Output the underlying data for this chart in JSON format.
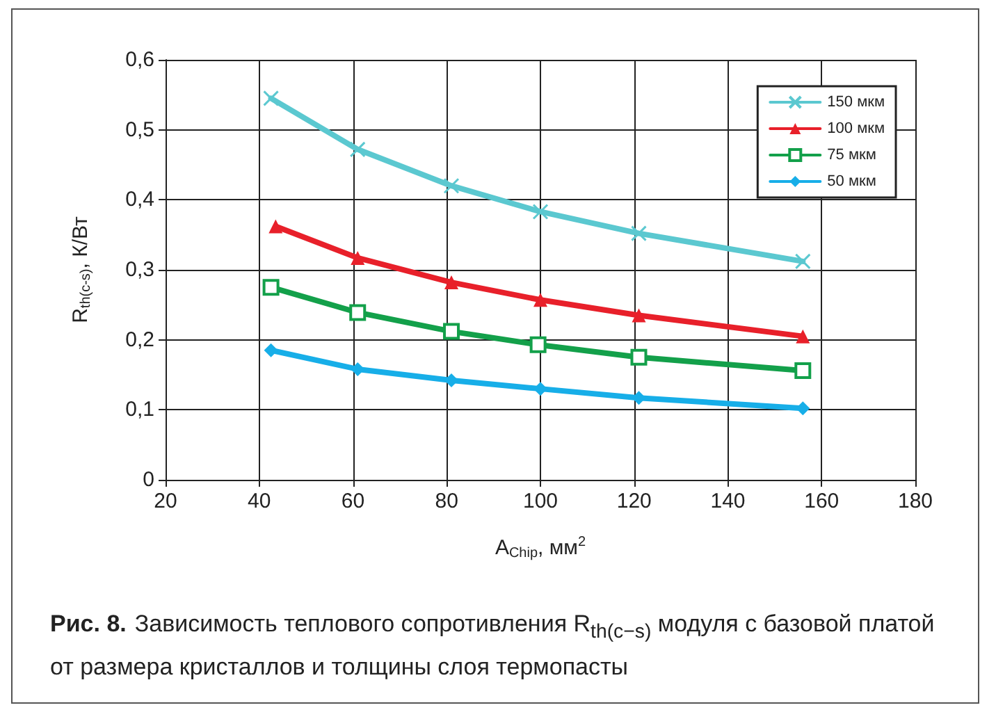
{
  "chart_data": {
    "type": "line",
    "xlabel": "A$_{Chip}$, мм$^{2}$",
    "ylabel": "R$_{th(c-s)}$, К/Вт",
    "xlim": [
      20,
      180
    ],
    "xticks": [
      20,
      40,
      60,
      80,
      100,
      120,
      140,
      160,
      180
    ],
    "ylim": [
      0,
      0.6
    ],
    "yticks": [
      {
        "value": 0,
        "label": "0"
      },
      {
        "value": 0.1,
        "label": "0,1"
      },
      {
        "value": 0.2,
        "label": "0,2"
      },
      {
        "value": 0.3,
        "label": "0,3"
      },
      {
        "value": 0.4,
        "label": "0,4"
      },
      {
        "value": 0.5,
        "label": "0,5"
      },
      {
        "value": 0.6,
        "label": "0,6"
      }
    ],
    "grid": true,
    "legend": "top right",
    "line_style": "solid",
    "series": [
      {
        "name": "150 мкм",
        "color": "#5bc8d0",
        "marker": "cross",
        "x": [
          42.5,
          61,
          81,
          100,
          121,
          156
        ],
        "values": [
          0.545,
          0.472,
          0.42,
          0.383,
          0.352,
          0.312
        ]
      },
      {
        "name": "100 мкм",
        "color": "#e8202a",
        "marker": "triangle",
        "x": [
          43.5,
          61,
          81,
          100,
          121,
          156
        ],
        "values": [
          0.362,
          0.317,
          0.282,
          0.257,
          0.235,
          0.205
        ]
      },
      {
        "name": "75 мкм",
        "color": "#13a04a",
        "marker": "square",
        "x": [
          42.5,
          61,
          81,
          99.5,
          121,
          156
        ],
        "values": [
          0.275,
          0.239,
          0.212,
          0.193,
          0.175,
          0.156
        ]
      },
      {
        "name": "50 мкм",
        "color": "#17aee8",
        "marker": "diamond",
        "x": [
          42.5,
          61,
          81,
          100,
          121,
          156
        ],
        "values": [
          0.185,
          0.158,
          0.142,
          0.13,
          0.117,
          0.102
        ]
      }
    ],
    "annotations": [
      "Рис. 8.",
      "Зависимость теплового сопротивления R$_{th(c−s)}$ модуля с базовой платой от размера кристаллов и толщины слоя термопасты"
    ]
  }
}
